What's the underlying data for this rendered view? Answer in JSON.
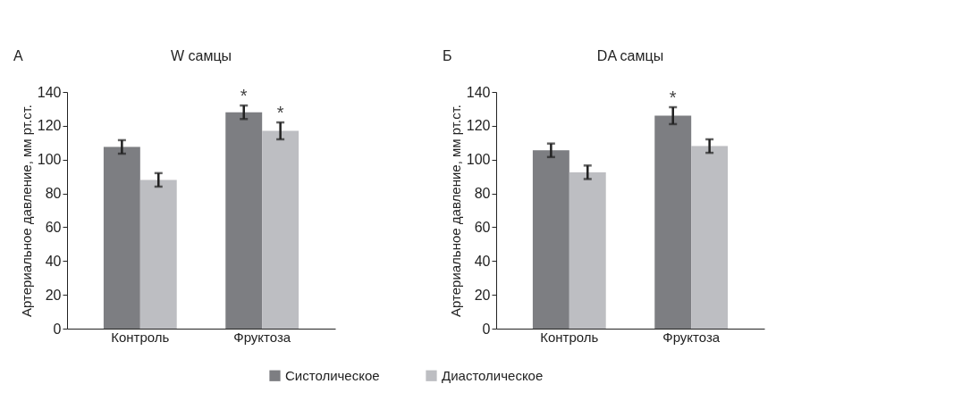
{
  "chart_data": [
    {
      "type": "bar",
      "title": "W самцы",
      "ylabel": "Артериальное давление, мм рт.ст.",
      "categories": [
        "Контроль",
        "Фруктоза"
      ],
      "series": [
        {
          "name": "Систолическое",
          "color": "#7d7e82",
          "values": [
            107.5,
            128
          ],
          "errors": [
            4,
            4
          ]
        },
        {
          "name": "Диастолическое",
          "color": "#bdbec2",
          "values": [
            88,
            117
          ],
          "errors": [
            4,
            5
          ]
        }
      ],
      "ylim": [
        0,
        140
      ],
      "yticks": [
        0,
        20,
        40,
        60,
        80,
        100,
        120,
        140
      ],
      "grid": false,
      "legend": "bottom",
      "annotations": [
        "А",
        {
          "text": "*",
          "x": "Фруктоза",
          "y": 128
        },
        {
          "text": "*",
          "x": "Фруктоза",
          "y": 117
        }
      ]
    },
    {
      "type": "bar",
      "title": "DA самцы",
      "ylabel": "Артериальное давление, мм рт.ст.",
      "categories": [
        "Контроль",
        "Фруктоза"
      ],
      "series": [
        {
          "name": "Систолическое",
          "color": "#7d7e82",
          "values": [
            105.5,
            126
          ],
          "errors": [
            4,
            5
          ]
        },
        {
          "name": "Диастолическое",
          "color": "#bdbec2",
          "values": [
            92.5,
            108
          ],
          "errors": [
            4,
            4
          ]
        }
      ],
      "ylim": [
        0,
        140
      ],
      "yticks": [
        0,
        20,
        40,
        60,
        80,
        100,
        120,
        140
      ],
      "grid": false,
      "annotations": [
        "Б",
        {
          "text": "*",
          "x": "Фруктоза",
          "y": 126
        }
      ]
    }
  ]
}
